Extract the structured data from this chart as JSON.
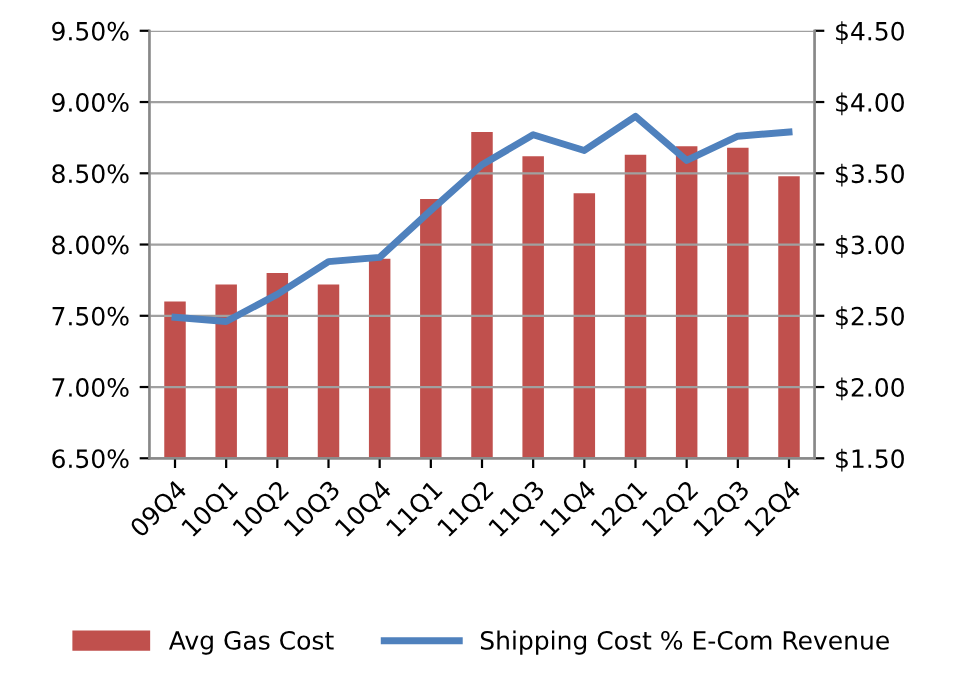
{
  "chart_data": {
    "type": "bar",
    "categories": [
      "09Q4",
      "10Q1",
      "10Q2",
      "10Q3",
      "10Q4",
      "11Q1",
      "11Q2",
      "11Q3",
      "11Q4",
      "12Q1",
      "12Q2",
      "12Q3",
      "12Q4"
    ],
    "series": [
      {
        "name": "Avg Gas Cost",
        "axis": "y2",
        "color": "#c0504d",
        "values": [
          2.6,
          2.72,
          2.8,
          2.72,
          2.9,
          3.32,
          3.79,
          3.62,
          3.36,
          3.63,
          3.69,
          3.68,
          3.48
        ]
      },
      {
        "name": "Shipping Cost % E-Com Revenue",
        "type": "line",
        "axis": "y",
        "color": "#4f81bd",
        "values": [
          7.49,
          7.46,
          7.65,
          7.88,
          7.91,
          8.24,
          8.56,
          8.77,
          8.66,
          8.9,
          8.59,
          8.76,
          8.79
        ]
      }
    ],
    "ylim": [
      6.5,
      9.5
    ],
    "yticks": [
      {
        "value": 6.5,
        "label": "6.50%"
      },
      {
        "value": 7.0,
        "label": "7.00%"
      },
      {
        "value": 7.5,
        "label": "7.50%"
      },
      {
        "value": 8.0,
        "label": "8.00%"
      },
      {
        "value": 8.5,
        "label": "8.50%"
      },
      {
        "value": 9.0,
        "label": "9.00%"
      },
      {
        "value": 9.5,
        "label": "9.50%"
      }
    ],
    "y2lim": [
      1.5,
      4.5
    ],
    "y2ticks": [
      {
        "value": 1.5,
        "label": "$1.50"
      },
      {
        "value": 2.0,
        "label": "$2.00"
      },
      {
        "value": 2.5,
        "label": "$2.50"
      },
      {
        "value": 3.0,
        "label": "$3.00"
      },
      {
        "value": 3.5,
        "label": "$3.50"
      },
      {
        "value": 4.0,
        "label": "$4.00"
      },
      {
        "value": 4.5,
        "label": "$4.50"
      }
    ],
    "grid": "y",
    "legend": "bottom",
    "marker": "none",
    "line_style": "solid"
  }
}
